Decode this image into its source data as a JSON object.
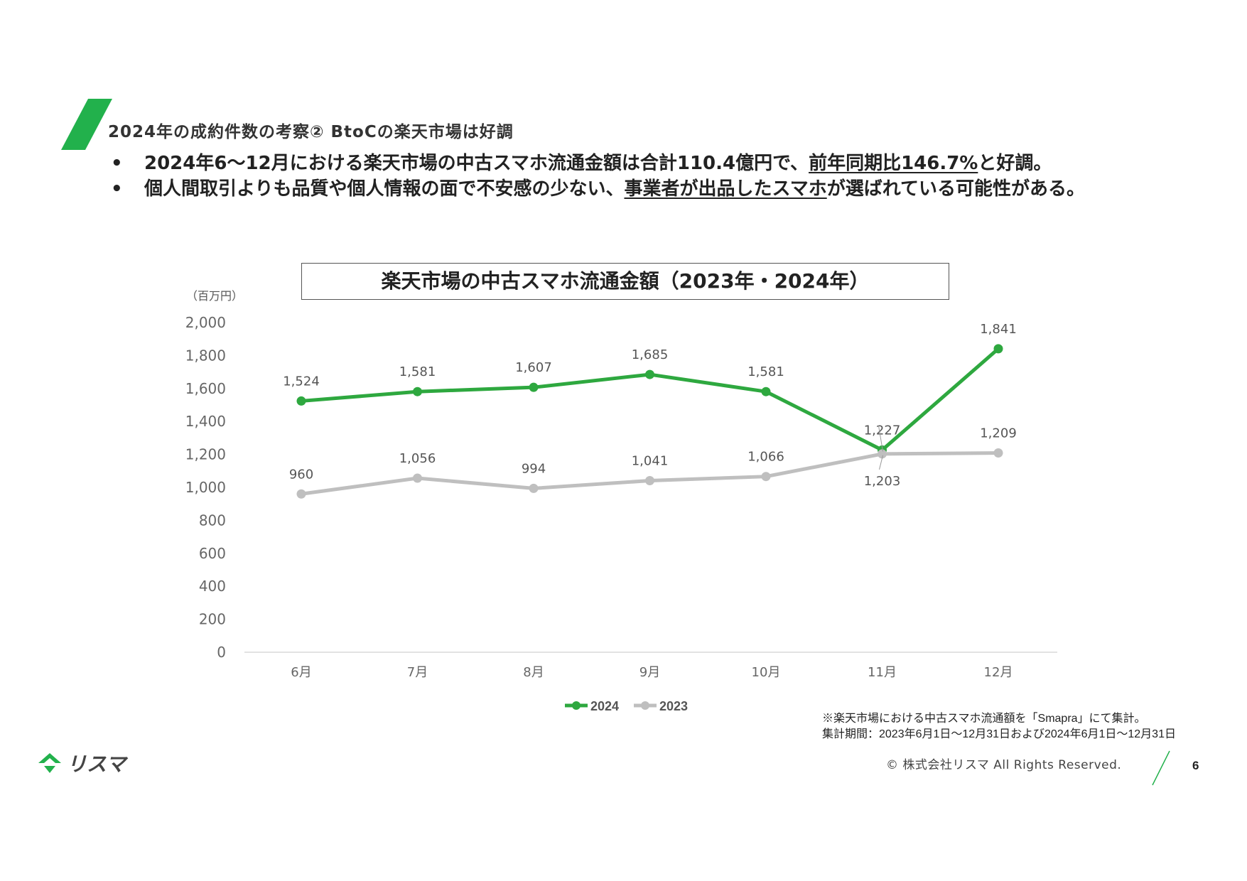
{
  "header": {
    "section_title": "2024年の成約件数の考察② BtoCの楽天市場は好調"
  },
  "bullets": [
    {
      "marker": "•",
      "text_before": "2024年6～12月における楽天市場の中古スマホ流通金額は合計110.4億円で、",
      "underlined": "前年同期比146.7%",
      "text_after": "と好調。"
    },
    {
      "marker": "•",
      "text_before": "個人間取引よりも品質や個人情報の面で不安感の少ない、",
      "underlined": "事業者が出品したスマホ",
      "text_after": "が選ばれている可能性がある。"
    }
  ],
  "chart_data": {
    "type": "line",
    "title": "楽天市場の中古スマホ流通金額（2023年・2024年）",
    "unit_label": "（百万円）",
    "categories": [
      "6月",
      "7月",
      "8月",
      "9月",
      "10月",
      "11月",
      "12月"
    ],
    "ylim": [
      0,
      2000
    ],
    "yticks": [
      "2,000",
      "1,800",
      "1,600",
      "1,400",
      "1,200",
      "1,000",
      "800",
      "600",
      "400",
      "200",
      "0"
    ],
    "grid": false,
    "legend_position": "bottom",
    "series": [
      {
        "name": "2024",
        "color": "#2ea83f",
        "values": [
          1524,
          1581,
          1607,
          1685,
          1581,
          1227,
          1841
        ],
        "labels": [
          "1,524",
          "1,581",
          "1,607",
          "1,685",
          "1,581",
          "1,227",
          "1,841"
        ]
      },
      {
        "name": "2023",
        "color": "#bfbfbf",
        "values": [
          960,
          1056,
          994,
          1041,
          1066,
          1203,
          1209
        ],
        "labels": [
          "960",
          "1,056",
          "994",
          "1,041",
          "1,066",
          "1,203",
          "1,209"
        ]
      }
    ]
  },
  "footer": {
    "note_line1": "※楽天市場における中古スマホ流通額を「Smapra」にて集計。",
    "note_line2": "集計期間：2023年6月1日～12月31日および2024年6月1日～12月31日",
    "company_logo_text": "リスマ",
    "copyright": "© 株式会社リスマ All Rights Reserved.",
    "page_number": "6"
  },
  "colors": {
    "brand_green": "#22b14c",
    "series_2024": "#2ea83f",
    "series_2023": "#bfbfbf"
  }
}
